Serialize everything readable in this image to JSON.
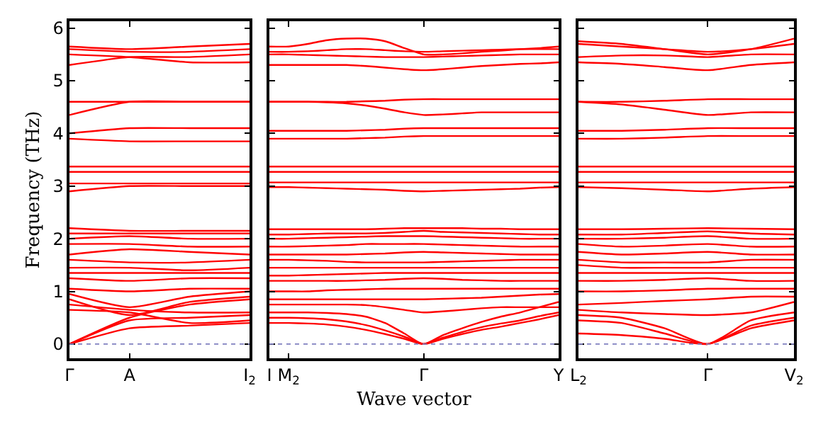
{
  "chart_data": [
    {
      "type": "line",
      "ylabel": "Frequency (THz)",
      "categories": [
        "Γ",
        "A",
        null,
        "I$_{2}$"
      ],
      "ylim": [
        -0.27,
        6.13
      ],
      "yticks": [
        0,
        1,
        2,
        3,
        4,
        5,
        6
      ],
      "ref_lines": [
        {
          "axis": "y",
          "value": 0,
          "color": "#8080c0",
          "line_style": "dotted"
        }
      ],
      "series": [
        {
          "color": "#ff0000",
          "values": [
            0,
            0.3,
            0.35,
            0.4
          ]
        },
        {
          "color": "#ff0000",
          "values": [
            0,
            0.45,
            0.5,
            0.55
          ]
        },
        {
          "color": "#ff0000",
          "values": [
            0,
            0.5,
            0.75,
            0.85
          ]
        },
        {
          "color": "#ff0000",
          "values": [
            0.65,
            0.6,
            0.4,
            0.45
          ]
        },
        {
          "color": "#ff0000",
          "values": [
            0.75,
            0.65,
            0.6,
            0.6
          ]
        },
        {
          "color": "#ff0000",
          "values": [
            0.85,
            0.55,
            0.8,
            0.9
          ]
        },
        {
          "color": "#ff0000",
          "values": [
            0.95,
            0.7,
            0.9,
            1.0
          ]
        },
        {
          "color": "#ff0000",
          "values": [
            1.05,
            1.0,
            1.05,
            1.05
          ]
        },
        {
          "color": "#ff0000",
          "values": [
            1.25,
            1.2,
            1.25,
            1.25
          ]
        },
        {
          "color": "#ff0000",
          "values": [
            1.35,
            1.35,
            1.35,
            1.35
          ]
        },
        {
          "color": "#ff0000",
          "values": [
            1.45,
            1.45,
            1.4,
            1.45
          ]
        },
        {
          "color": "#ff0000",
          "values": [
            1.6,
            1.55,
            1.55,
            1.6
          ]
        },
        {
          "color": "#ff0000",
          "values": [
            1.7,
            1.8,
            1.75,
            1.7
          ]
        },
        {
          "color": "#ff0000",
          "values": [
            1.9,
            1.9,
            1.85,
            1.85
          ]
        },
        {
          "color": "#ff0000",
          "values": [
            2.0,
            2.05,
            2.0,
            2.0
          ]
        },
        {
          "color": "#ff0000",
          "values": [
            2.1,
            2.1,
            2.1,
            2.1
          ]
        },
        {
          "color": "#ff0000",
          "values": [
            2.2,
            2.15,
            2.15,
            2.15
          ]
        },
        {
          "color": "#ff0000",
          "values": [
            2.9,
            3.0,
            3.0,
            3.0
          ]
        },
        {
          "color": "#ff0000",
          "values": [
            3.05,
            3.05,
            3.05,
            3.05
          ]
        },
        {
          "color": "#ff0000",
          "values": [
            3.27,
            3.27,
            3.27,
            3.27
          ]
        },
        {
          "color": "#ff0000",
          "values": [
            3.37,
            3.37,
            3.37,
            3.37
          ]
        },
        {
          "color": "#ff0000",
          "values": [
            3.9,
            3.85,
            3.85,
            3.85
          ]
        },
        {
          "color": "#ff0000",
          "values": [
            4.0,
            4.1,
            4.1,
            4.1
          ]
        },
        {
          "color": "#ff0000",
          "values": [
            4.35,
            4.6,
            4.6,
            4.6
          ]
        },
        {
          "color": "#ff0000",
          "values": [
            4.6,
            4.6,
            4.6,
            4.6
          ]
        },
        {
          "color": "#ff0000",
          "values": [
            5.3,
            5.45,
            5.45,
            5.5
          ]
        },
        {
          "color": "#ff0000",
          "values": [
            5.5,
            5.45,
            5.35,
            5.35
          ]
        },
        {
          "color": "#ff0000",
          "values": [
            5.6,
            5.55,
            5.55,
            5.6
          ]
        },
        {
          "color": "#ff0000",
          "values": [
            5.65,
            5.6,
            5.65,
            5.7
          ]
        }
      ]
    },
    {
      "type": "line",
      "xlabel": "Wave vector",
      "tick_labels": "x",
      "categories": [
        "I",
        "M$_{2}$",
        null,
        null,
        null,
        null,
        null,
        null,
        "Γ",
        null,
        null,
        null,
        null,
        null,
        null,
        "Y"
      ],
      "ylim": [
        -0.27,
        6.13
      ],
      "yticks": [
        0,
        1,
        2,
        3,
        4,
        5,
        6
      ],
      "ref_lines": [
        {
          "axis": "y",
          "value": 0,
          "color": "#8080c0",
          "line_style": "dotted"
        }
      ],
      "series": [
        {
          "color": "#ff0000",
          "values": [
            0.4,
            0.4,
            0.39,
            0.37,
            0.33,
            0.27,
            0.19,
            0.1,
            0,
            0.1,
            0.19,
            0.27,
            0.33,
            0.4,
            0.47,
            0.55
          ]
        },
        {
          "color": "#ff0000",
          "values": [
            0.5,
            0.5,
            0.49,
            0.47,
            0.43,
            0.36,
            0.26,
            0.14,
            0,
            0.12,
            0.23,
            0.32,
            0.39,
            0.45,
            0.53,
            0.6
          ]
        },
        {
          "color": "#ff0000",
          "values": [
            0.6,
            0.6,
            0.6,
            0.59,
            0.57,
            0.52,
            0.4,
            0.2,
            0,
            0.17,
            0.3,
            0.42,
            0.52,
            0.6,
            0.7,
            0.8
          ]
        },
        {
          "color": "#ff0000",
          "values": [
            0.75,
            0.75,
            0.75,
            0.75,
            0.75,
            0.74,
            0.7,
            0.65,
            0.6,
            0.62,
            0.65,
            0.68,
            0.7,
            0.7,
            0.7,
            0.7
          ]
        },
        {
          "color": "#ff0000",
          "values": [
            0.85,
            0.85,
            0.85,
            0.85,
            0.85,
            0.85,
            0.85,
            0.85,
            0.85,
            0.86,
            0.87,
            0.88,
            0.9,
            0.92,
            0.94,
            0.95
          ]
        },
        {
          "color": "#ff0000",
          "values": [
            1.0,
            1.0,
            1.0,
            1.02,
            1.03,
            1.04,
            1.05,
            1.05,
            1.05,
            1.05,
            1.05,
            1.05,
            1.05,
            1.05,
            1.05,
            1.05
          ]
        },
        {
          "color": "#ff0000",
          "values": [
            1.2,
            1.2,
            1.2,
            1.2,
            1.2,
            1.21,
            1.22,
            1.24,
            1.25,
            1.24,
            1.22,
            1.21,
            1.2,
            1.2,
            1.2,
            1.2
          ]
        },
        {
          "color": "#ff0000",
          "values": [
            1.3,
            1.3,
            1.31,
            1.32,
            1.33,
            1.34,
            1.35,
            1.35,
            1.35,
            1.35,
            1.35,
            1.35,
            1.35,
            1.35,
            1.35,
            1.35
          ]
        },
        {
          "color": "#ff0000",
          "values": [
            1.45,
            1.45,
            1.45,
            1.45,
            1.45,
            1.45,
            1.45,
            1.45,
            1.45,
            1.45,
            1.45,
            1.45,
            1.45,
            1.45,
            1.45,
            1.45
          ]
        },
        {
          "color": "#ff0000",
          "values": [
            1.6,
            1.6,
            1.59,
            1.58,
            1.56,
            1.55,
            1.55,
            1.55,
            1.55,
            1.56,
            1.57,
            1.58,
            1.59,
            1.6,
            1.6,
            1.6
          ]
        },
        {
          "color": "#ff0000",
          "values": [
            1.7,
            1.7,
            1.7,
            1.7,
            1.7,
            1.71,
            1.72,
            1.74,
            1.75,
            1.74,
            1.73,
            1.72,
            1.71,
            1.7,
            1.7,
            1.7
          ]
        },
        {
          "color": "#ff0000",
          "values": [
            1.85,
            1.85,
            1.86,
            1.87,
            1.88,
            1.9,
            1.9,
            1.9,
            1.9,
            1.89,
            1.88,
            1.87,
            1.86,
            1.85,
            1.85,
            1.85
          ]
        },
        {
          "color": "#ff0000",
          "values": [
            2.0,
            2.0,
            2.01,
            2.02,
            2.03,
            2.04,
            2.05,
            2.05,
            2.05,
            2.04,
            2.03,
            2.02,
            2.01,
            2.0,
            2.0,
            2.0
          ]
        },
        {
          "color": "#ff0000",
          "values": [
            2.08,
            2.08,
            2.09,
            2.1,
            2.1,
            2.1,
            2.11,
            2.13,
            2.15,
            2.13,
            2.12,
            2.11,
            2.1,
            2.09,
            2.08,
            2.08
          ]
        },
        {
          "color": "#ff0000",
          "values": [
            2.18,
            2.18,
            2.18,
            2.18,
            2.18,
            2.18,
            2.19,
            2.2,
            2.2,
            2.2,
            2.2,
            2.19,
            2.19,
            2.18,
            2.18,
            2.18
          ]
        },
        {
          "color": "#ff0000",
          "values": [
            2.98,
            2.98,
            2.97,
            2.96,
            2.95,
            2.94,
            2.93,
            2.91,
            2.9,
            2.91,
            2.92,
            2.93,
            2.94,
            2.95,
            2.97,
            2.98
          ]
        },
        {
          "color": "#ff0000",
          "values": [
            3.07,
            3.07,
            3.07,
            3.07,
            3.07,
            3.07,
            3.07,
            3.07,
            3.07,
            3.07,
            3.07,
            3.07,
            3.07,
            3.07,
            3.07,
            3.07
          ]
        },
        {
          "color": "#ff0000",
          "values": [
            3.27,
            3.27,
            3.27,
            3.27,
            3.27,
            3.27,
            3.27,
            3.27,
            3.27,
            3.27,
            3.27,
            3.27,
            3.27,
            3.27,
            3.27,
            3.27
          ]
        },
        {
          "color": "#ff0000",
          "values": [
            3.37,
            3.37,
            3.37,
            3.37,
            3.37,
            3.37,
            3.37,
            3.37,
            3.37,
            3.37,
            3.37,
            3.37,
            3.37,
            3.37,
            3.37,
            3.37
          ]
        },
        {
          "color": "#ff0000",
          "values": [
            3.9,
            3.9,
            3.9,
            3.9,
            3.9,
            3.91,
            3.92,
            3.94,
            3.95,
            3.95,
            3.95,
            3.95,
            3.95,
            3.95,
            3.95,
            3.95
          ]
        },
        {
          "color": "#ff0000",
          "values": [
            4.05,
            4.05,
            4.05,
            4.05,
            4.05,
            4.06,
            4.07,
            4.09,
            4.1,
            4.1,
            4.1,
            4.1,
            4.1,
            4.1,
            4.1,
            4.1
          ]
        },
        {
          "color": "#ff0000",
          "values": [
            4.6,
            4.6,
            4.6,
            4.59,
            4.57,
            4.53,
            4.47,
            4.4,
            4.35,
            4.36,
            4.38,
            4.4,
            4.4,
            4.4,
            4.4,
            4.4
          ]
        },
        {
          "color": "#ff0000",
          "values": [
            4.6,
            4.6,
            4.6,
            4.6,
            4.6,
            4.61,
            4.62,
            4.64,
            4.65,
            4.65,
            4.65,
            4.65,
            4.65,
            4.65,
            4.65,
            4.65
          ]
        },
        {
          "color": "#ff0000",
          "values": [
            5.3,
            5.3,
            5.3,
            5.3,
            5.3,
            5.28,
            5.25,
            5.22,
            5.2,
            5.22,
            5.25,
            5.28,
            5.3,
            5.32,
            5.33,
            5.35
          ]
        },
        {
          "color": "#ff0000",
          "values": [
            5.5,
            5.5,
            5.49,
            5.48,
            5.47,
            5.46,
            5.45,
            5.45,
            5.45,
            5.46,
            5.47,
            5.48,
            5.49,
            5.5,
            5.5,
            5.5
          ]
        },
        {
          "color": "#ff0000",
          "values": [
            5.55,
            5.55,
            5.56,
            5.58,
            5.6,
            5.6,
            5.58,
            5.56,
            5.55,
            5.56,
            5.57,
            5.58,
            5.59,
            5.6,
            5.6,
            5.6
          ]
        },
        {
          "color": "#ff0000",
          "values": [
            5.65,
            5.65,
            5.7,
            5.77,
            5.8,
            5.8,
            5.75,
            5.62,
            5.5,
            5.5,
            5.52,
            5.55,
            5.57,
            5.6,
            5.62,
            5.65
          ]
        }
      ]
    },
    {
      "type": "line",
      "tick_labels": "x",
      "categories": [
        "L$_{2}$",
        null,
        null,
        "Γ",
        null,
        "V$_{2}$"
      ],
      "ylim": [
        -0.27,
        6.13
      ],
      "yticks": [
        0,
        1,
        2,
        3,
        4,
        5,
        6
      ],
      "ref_lines": [
        {
          "axis": "y",
          "value": 0,
          "color": "#8080c0",
          "line_style": "dotted"
        }
      ],
      "series": [
        {
          "color": "#ff0000",
          "values": [
            0.2,
            0.17,
            0.1,
            0,
            0.3,
            0.45
          ]
        },
        {
          "color": "#ff0000",
          "values": [
            0.45,
            0.4,
            0.2,
            0,
            0.35,
            0.5
          ]
        },
        {
          "color": "#ff0000",
          "values": [
            0.55,
            0.5,
            0.3,
            0,
            0.45,
            0.6
          ]
        },
        {
          "color": "#ff0000",
          "values": [
            0.65,
            0.6,
            0.57,
            0.55,
            0.6,
            0.8
          ]
        },
        {
          "color": "#ff0000",
          "values": [
            0.75,
            0.78,
            0.82,
            0.85,
            0.9,
            0.9
          ]
        },
        {
          "color": "#ff0000",
          "values": [
            1.0,
            1.0,
            1.02,
            1.05,
            1.05,
            1.05
          ]
        },
        {
          "color": "#ff0000",
          "values": [
            1.2,
            1.2,
            1.22,
            1.25,
            1.2,
            1.2
          ]
        },
        {
          "color": "#ff0000",
          "values": [
            1.35,
            1.35,
            1.35,
            1.35,
            1.35,
            1.35
          ]
        },
        {
          "color": "#ff0000",
          "values": [
            1.5,
            1.45,
            1.45,
            1.45,
            1.45,
            1.45
          ]
        },
        {
          "color": "#ff0000",
          "values": [
            1.6,
            1.55,
            1.55,
            1.55,
            1.6,
            1.6
          ]
        },
        {
          "color": "#ff0000",
          "values": [
            1.75,
            1.7,
            1.72,
            1.75,
            1.7,
            1.7
          ]
        },
        {
          "color": "#ff0000",
          "values": [
            1.9,
            1.85,
            1.87,
            1.9,
            1.85,
            1.85
          ]
        },
        {
          "color": "#ff0000",
          "values": [
            2.0,
            2.0,
            2.02,
            2.05,
            2.0,
            2.0
          ]
        },
        {
          "color": "#ff0000",
          "values": [
            2.08,
            2.08,
            2.11,
            2.14,
            2.1,
            2.08
          ]
        },
        {
          "color": "#ff0000",
          "values": [
            2.18,
            2.18,
            2.19,
            2.2,
            2.19,
            2.18
          ]
        },
        {
          "color": "#ff0000",
          "values": [
            2.98,
            2.96,
            2.93,
            2.9,
            2.95,
            2.98
          ]
        },
        {
          "color": "#ff0000",
          "values": [
            3.07,
            3.07,
            3.07,
            3.07,
            3.07,
            3.07
          ]
        },
        {
          "color": "#ff0000",
          "values": [
            3.27,
            3.27,
            3.27,
            3.27,
            3.27,
            3.27
          ]
        },
        {
          "color": "#ff0000",
          "values": [
            3.37,
            3.37,
            3.37,
            3.37,
            3.37,
            3.37
          ]
        },
        {
          "color": "#ff0000",
          "values": [
            3.9,
            3.9,
            3.92,
            3.95,
            3.95,
            3.95
          ]
        },
        {
          "color": "#ff0000",
          "values": [
            4.05,
            4.05,
            4.07,
            4.1,
            4.1,
            4.1
          ]
        },
        {
          "color": "#ff0000",
          "values": [
            4.6,
            4.55,
            4.45,
            4.35,
            4.4,
            4.4
          ]
        },
        {
          "color": "#ff0000",
          "values": [
            4.6,
            4.6,
            4.62,
            4.65,
            4.65,
            4.65
          ]
        },
        {
          "color": "#ff0000",
          "values": [
            5.35,
            5.32,
            5.26,
            5.2,
            5.3,
            5.35
          ]
        },
        {
          "color": "#ff0000",
          "values": [
            5.45,
            5.48,
            5.48,
            5.45,
            5.5,
            5.5
          ]
        },
        {
          "color": "#ff0000",
          "values": [
            5.7,
            5.65,
            5.6,
            5.55,
            5.6,
            5.7
          ]
        },
        {
          "color": "#ff0000",
          "values": [
            5.75,
            5.7,
            5.6,
            5.5,
            5.6,
            5.8
          ]
        }
      ]
    }
  ]
}
